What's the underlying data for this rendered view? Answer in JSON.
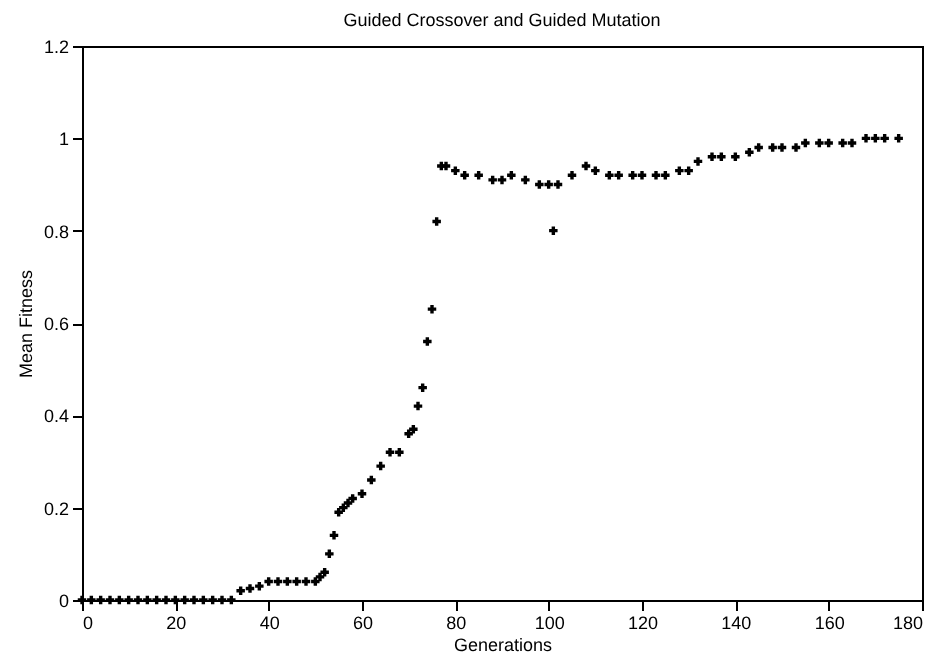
{
  "chart_data": {
    "type": "scatter",
    "title": "Guided Crossover and Guided Mutation",
    "xlabel": "Generations",
    "ylabel": "Mean Fitness",
    "marker": "cross",
    "grid": false,
    "legend": false,
    "xlim": [
      0,
      180
    ],
    "xticks": [
      0,
      20,
      40,
      60,
      80,
      100,
      120,
      140,
      160,
      180
    ],
    "ylim": [
      0,
      1.2
    ],
    "yticks": [
      0,
      0.2,
      0.4,
      0.6,
      0.8,
      1,
      1.2
    ],
    "series": [
      {
        "color": "#000000",
        "x": [
          0,
          2,
          4,
          6,
          8,
          10,
          12,
          14,
          16,
          18,
          20,
          22,
          24,
          26,
          28,
          30,
          32,
          34,
          36,
          38,
          40,
          42,
          44,
          46,
          48,
          50,
          51,
          52,
          53,
          54,
          55,
          56,
          57,
          58,
          60,
          62,
          64,
          66,
          68,
          70,
          71,
          72,
          73,
          74,
          75,
          76,
          77,
          78,
          80,
          82,
          85,
          88,
          90,
          92,
          95,
          98,
          100,
          101,
          102,
          105,
          108,
          110,
          113,
          115,
          118,
          120,
          123,
          125,
          128,
          130,
          132,
          135,
          137,
          140,
          143,
          145,
          148,
          150,
          153,
          155,
          158,
          160,
          163,
          165,
          168,
          170,
          172,
          175
        ],
        "values": [
          0,
          0,
          0,
          0,
          0,
          0,
          0,
          0,
          0,
          0,
          0,
          0,
          0,
          0,
          0,
          0,
          0,
          0.02,
          0.025,
          0.03,
          0.04,
          0.04,
          0.04,
          0.04,
          0.04,
          0.04,
          0.05,
          0.06,
          0.1,
          0.14,
          0.19,
          0.2,
          0.21,
          0.22,
          0.23,
          0.26,
          0.29,
          0.32,
          0.32,
          0.36,
          0.37,
          0.42,
          0.46,
          0.56,
          0.63,
          0.82,
          0.94,
          0.94,
          0.93,
          0.92,
          0.92,
          0.91,
          0.91,
          0.92,
          0.91,
          0.9,
          0.9,
          0.8,
          0.9,
          0.92,
          0.94,
          0.93,
          0.92,
          0.92,
          0.92,
          0.92,
          0.92,
          0.92,
          0.93,
          0.93,
          0.95,
          0.96,
          0.96,
          0.96,
          0.97,
          0.98,
          0.98,
          0.98,
          0.98,
          0.99,
          0.99,
          0.99,
          0.99,
          0.99,
          1,
          1,
          1,
          1
        ]
      }
    ]
  }
}
